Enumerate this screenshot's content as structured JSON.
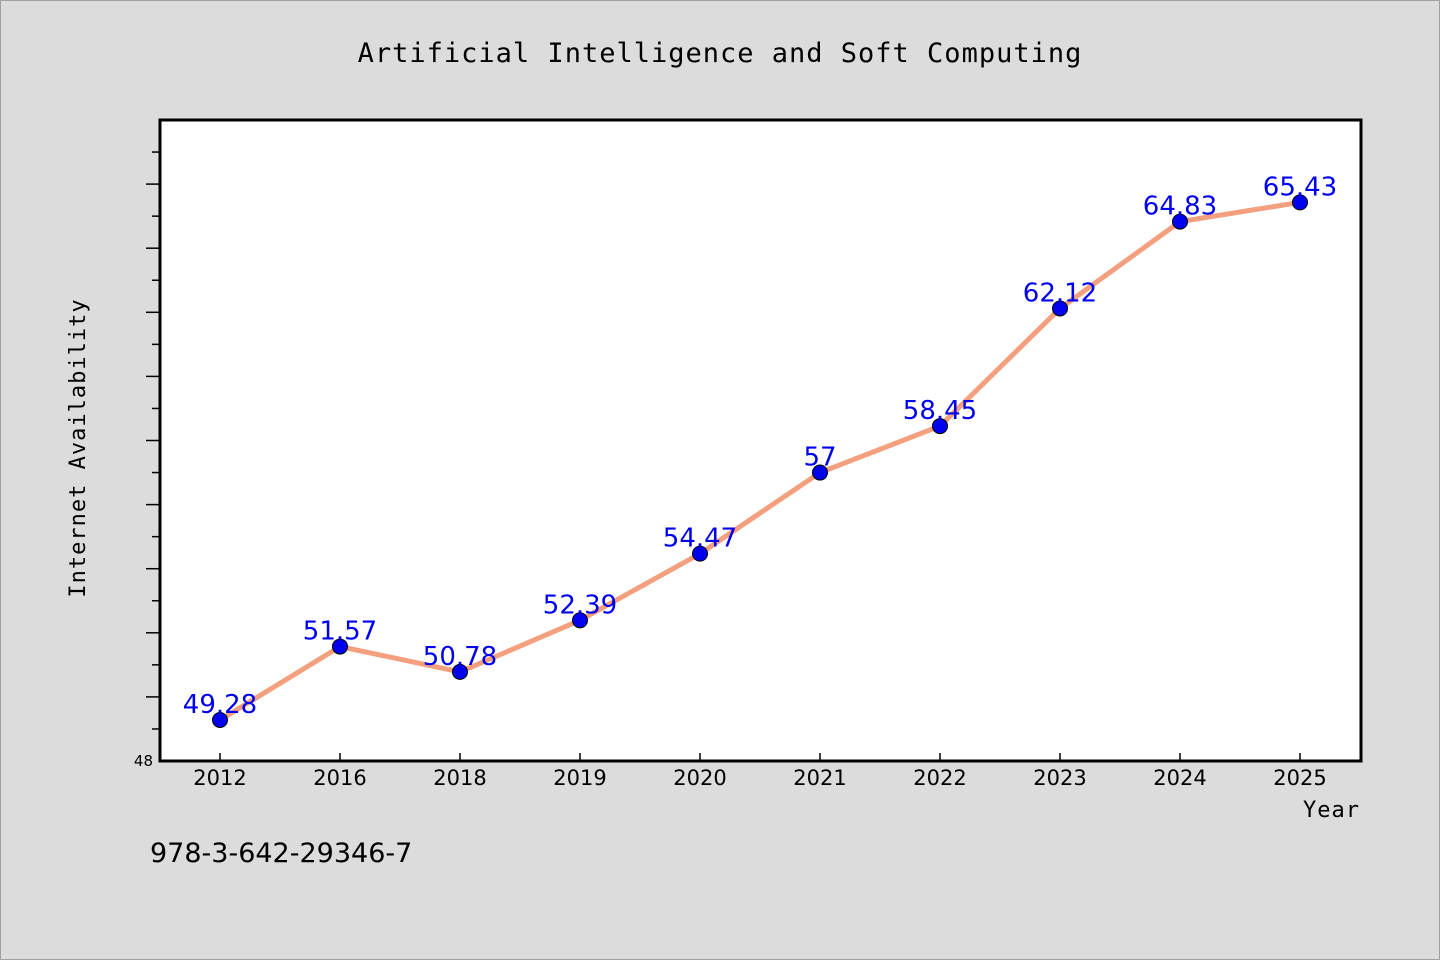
{
  "chart_data": {
    "type": "line",
    "title": "Artificial Intelligence and Soft Computing",
    "xlabel": "Year",
    "ylabel": "Internet Availability",
    "categories": [
      "2012",
      "2016",
      "2018",
      "2019",
      "2020",
      "2021",
      "2022",
      "2023",
      "2024",
      "2025"
    ],
    "series": [
      {
        "values": [
          49.28,
          51.57,
          50.78,
          52.39,
          54.47,
          57,
          58.45,
          62.12,
          64.83,
          65.43
        ],
        "labels": [
          "49.28",
          "51.57",
          "50.78",
          "52.39",
          "54.47",
          "57",
          "58.45",
          "62.12",
          "64.83",
          "65.43"
        ],
        "line_color": "#f4a07e",
        "marker_color": "#0000ee"
      }
    ],
    "ylim": [
      48,
      68
    ],
    "y_tick_labels": [
      "48"
    ],
    "grid": false,
    "legend": "none"
  },
  "footer": {
    "isbn": "978-3-642-29346-7"
  },
  "colors": {
    "background": "#dcdcdc",
    "plot_background": "#ffffff",
    "data_label": "#0000ee"
  }
}
